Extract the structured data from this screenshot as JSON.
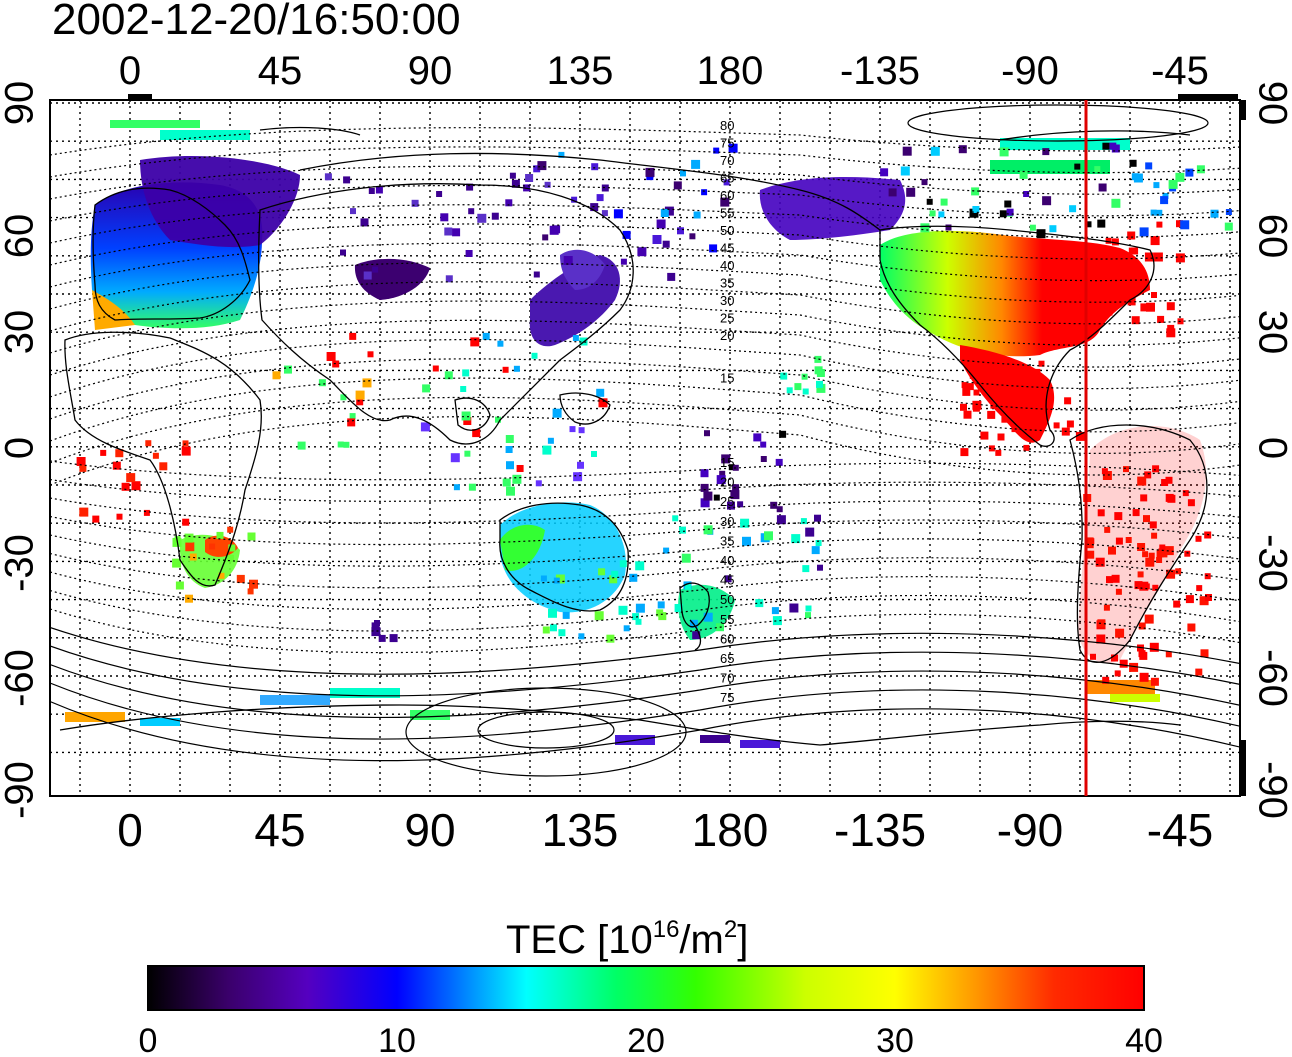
{
  "timestamp": "2002-12-20/16:50:00",
  "map": {
    "lon_ticks": [
      "0",
      "45",
      "90",
      "135",
      "180",
      "-135",
      "-90",
      "-45"
    ],
    "lat_ticks_left": [
      "90",
      "60",
      "30",
      "0",
      "-30",
      "-60",
      "-90"
    ],
    "lat_ticks_right": [
      "90",
      "60",
      "30",
      "0",
      "-30",
      "-60",
      "-90"
    ],
    "contour_labels_north": [
      "80",
      "75",
      "70",
      "65",
      "60",
      "55",
      "50",
      "45",
      "40",
      "35",
      "30",
      "25",
      "20",
      "15"
    ],
    "contour_labels_south": [
      "15",
      "20",
      "25",
      "30",
      "35",
      "40",
      "45",
      "50",
      "55",
      "60",
      "65",
      "70",
      "75"
    ],
    "colors": {
      "noon_meridian": "#e00000",
      "frame": "#000000",
      "grid": "#000000"
    }
  },
  "colorbar": {
    "title_text": "TEC  [10",
    "title_exp1": "16",
    "title_mid": "/m",
    "title_exp2": "2",
    "title_end": "]",
    "ticks": [
      "0",
      "10",
      "20",
      "30",
      "40"
    ],
    "stops": [
      "#000000",
      "#3a006a",
      "#5500c0",
      "#0000ff",
      "#0088ff",
      "#00ffff",
      "#00ff66",
      "#33ff00",
      "#ccff00",
      "#ffff00",
      "#ff9900",
      "#ff2a00",
      "#ff0000"
    ]
  }
}
